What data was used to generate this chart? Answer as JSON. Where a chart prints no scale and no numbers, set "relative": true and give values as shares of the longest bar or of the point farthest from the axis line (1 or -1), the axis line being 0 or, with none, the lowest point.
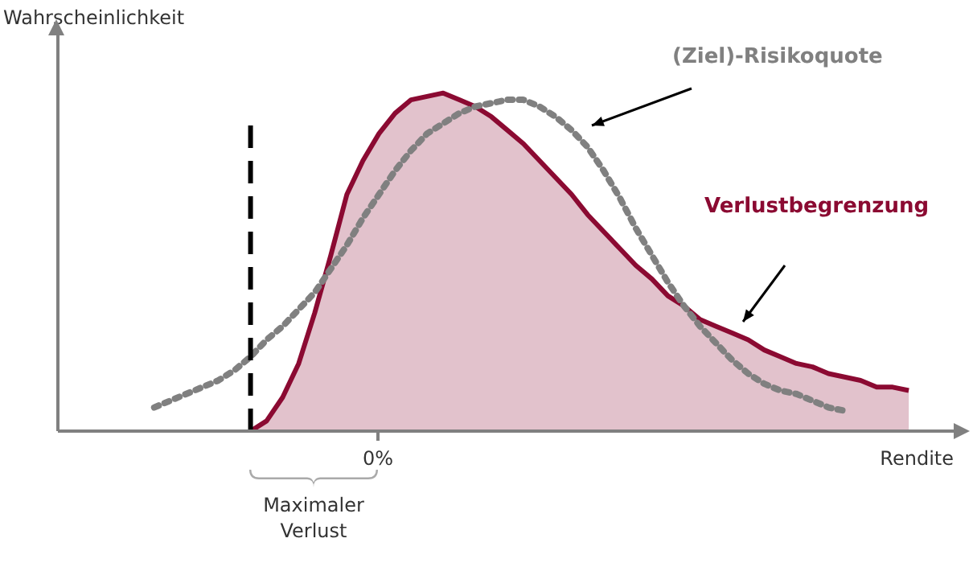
{
  "chart_data": {
    "type": "area",
    "relative": true,
    "xlabel": "Rendite",
    "ylabel": "Wahrscheinlichkeit",
    "categories": [
      null,
      null,
      null,
      null,
      null,
      null,
      null,
      null,
      null,
      null,
      null,
      null,
      null,
      null,
      null,
      null,
      null,
      null,
      null,
      null,
      null,
      null,
      null,
      null,
      null,
      null,
      null,
      null,
      null,
      null,
      null,
      null,
      null,
      null,
      null,
      null,
      null,
      null,
      null,
      null,
      null,
      null,
      null,
      null,
      null,
      null,
      null,
      null,
      null,
      null,
      null,
      null,
      null,
      null,
      null,
      null,
      null
    ],
    "series": [
      {
        "name": "Verlustbegrenzung",
        "color": "#8b0a32",
        "values": [
          null,
          null,
          null,
          null,
          null,
          null,
          null,
          null,
          null,
          null,
          null,
          null,
          0,
          0.03,
          0.1,
          0.2,
          0.35,
          0.52,
          0.7,
          0.8,
          0.88,
          0.94,
          0.98,
          0.99,
          1,
          0.98,
          0.96,
          0.93,
          0.89,
          0.85,
          0.8,
          0.75,
          0.7,
          0.64,
          0.59,
          0.54,
          0.49,
          0.45,
          0.4,
          0.37,
          0.33,
          0.31,
          0.29,
          0.27,
          0.24,
          0.22,
          0.2,
          0.19,
          0.17,
          0.16,
          0.15,
          0.13,
          0.13,
          0.12,
          null,
          null,
          null
        ]
      },
      {
        "name": "(Ziel)-Risikoquote",
        "type": "line",
        "color": "#808080",
        "line_style": "dotted",
        "values": [
          null,
          null,
          null,
          null,
          null,
          null,
          0.07,
          0.09,
          0.11,
          0.13,
          0.15,
          0.18,
          0.22,
          0.27,
          0.31,
          0.36,
          0.41,
          0.48,
          0.55,
          0.63,
          0.7,
          0.77,
          0.83,
          0.88,
          0.91,
          0.94,
          0.96,
          0.97,
          0.98,
          0.98,
          0.96,
          0.93,
          0.89,
          0.84,
          0.77,
          0.69,
          0.6,
          0.52,
          0.44,
          0.37,
          0.31,
          0.26,
          0.21,
          0.17,
          0.14,
          0.12,
          0.11,
          0.09,
          0.07,
          0.06,
          null,
          null,
          null,
          null,
          null,
          null,
          null
        ]
      }
    ],
    "annotations": [
      "0%",
      "Maximaler Verlust"
    ]
  }
}
